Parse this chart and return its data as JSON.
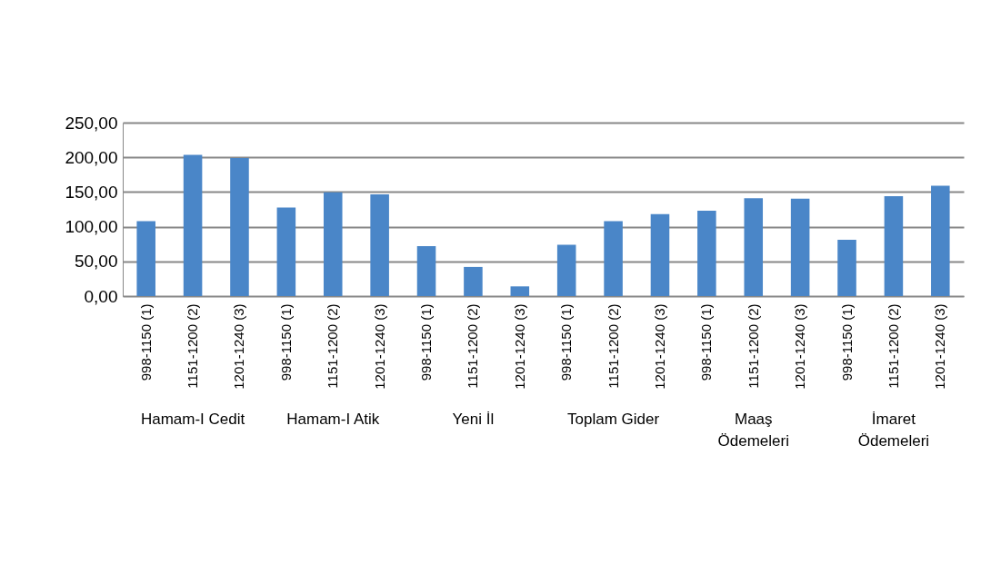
{
  "chart_data": {
    "type": "bar",
    "categories": [
      "998-1150 (1)",
      "1151-1200 (2)",
      "1201-1240 (3)",
      "998-1150 (1)",
      "1151-1200 (2)",
      "1201-1240 (3)",
      "998-1150 (1)",
      "1151-1200 (2)",
      "1201-1240 (3)",
      "998-1150 (1)",
      "1151-1200 (2)",
      "1201-1240 (3)",
      "998-1150 (1)",
      "1151-1200 (2)",
      "1201-1240 (3)",
      "998-1150 (1)",
      "1151-1200 (2)",
      "1201-1240 (3)"
    ],
    "values": [
      108,
      203.5,
      199,
      127.5,
      149.5,
      146.5,
      72,
      42,
      14,
      74,
      108,
      118,
      123,
      141,
      140.5,
      81,
      144,
      159
    ],
    "color": "#4a86c8",
    "annotations": [
      "Hamam-I Cedit",
      "Hamam-I Atik",
      "Yeni İl",
      "Toplam Gider",
      "Maaş Ödemeleri",
      "İmaret Ödemeleri"
    ],
    "ylim": [
      0,
      250
    ],
    "yticks": [
      {
        "value": 0,
        "label": "0,00"
      },
      {
        "value": 50,
        "label": "50,00"
      },
      {
        "value": 100,
        "label": "100,00"
      },
      {
        "value": 150,
        "label": "150,00"
      },
      {
        "value": 200,
        "label": "200,00"
      },
      {
        "value": 250,
        "label": "250,00"
      }
    ],
    "grid": "y"
  }
}
